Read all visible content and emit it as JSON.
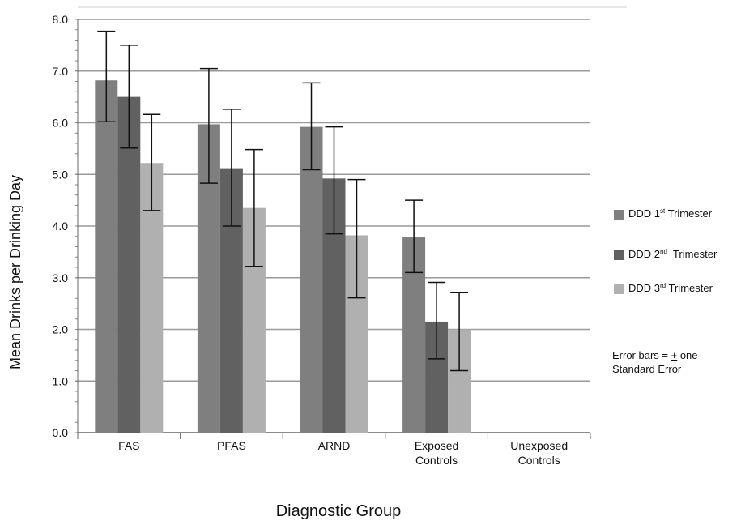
{
  "chart_data": {
    "type": "bar",
    "xlabel": "Diagnostic Group",
    "ylabel": "Mean Drinks per Drinking Day",
    "ylim": [
      0,
      8
    ],
    "yticks": [
      "0.0",
      "1.0",
      "2.0",
      "3.0",
      "4.0",
      "5.0",
      "6.0",
      "7.0",
      "8.0"
    ],
    "grid": "horizontal",
    "legend_position": "right",
    "categories": [
      [
        "FAS"
      ],
      [
        "PFAS"
      ],
      [
        "ARND"
      ],
      [
        "Exposed",
        "Controls"
      ],
      [
        "Unexposed",
        "Controls"
      ]
    ],
    "series": [
      {
        "name_base": "DDD 1",
        "name_sup": "st",
        "name_rest": " Trimester",
        "color": "#7f7f7f",
        "values": [
          6.82,
          5.97,
          5.92,
          3.79,
          null
        ],
        "error_low": [
          6.02,
          4.83,
          5.09,
          3.1,
          null
        ],
        "error_high": [
          7.77,
          7.05,
          6.77,
          4.5,
          null
        ]
      },
      {
        "name_base": "DDD 2",
        "name_sup": "nd",
        "name_rest": "  Trimester",
        "color": "#616161",
        "values": [
          6.5,
          5.12,
          4.92,
          2.15,
          null
        ],
        "error_low": [
          5.51,
          4.0,
          3.85,
          1.43,
          null
        ],
        "error_high": [
          7.5,
          6.26,
          5.92,
          2.91,
          null
        ]
      },
      {
        "name_base": "DDD 3",
        "name_sup": "rd",
        "name_rest": " Trimester",
        "color": "#b0b0b0",
        "values": [
          5.22,
          4.35,
          3.82,
          2.0,
          null
        ],
        "error_low": [
          4.3,
          3.22,
          2.61,
          1.2,
          null
        ],
        "error_high": [
          6.16,
          5.48,
          4.9,
          2.71,
          null
        ]
      }
    ],
    "annotation": {
      "line1_pre": "Error bars = ",
      "line1_pm": "+",
      "line1_post": " one",
      "line2": "Standard Error"
    }
  }
}
